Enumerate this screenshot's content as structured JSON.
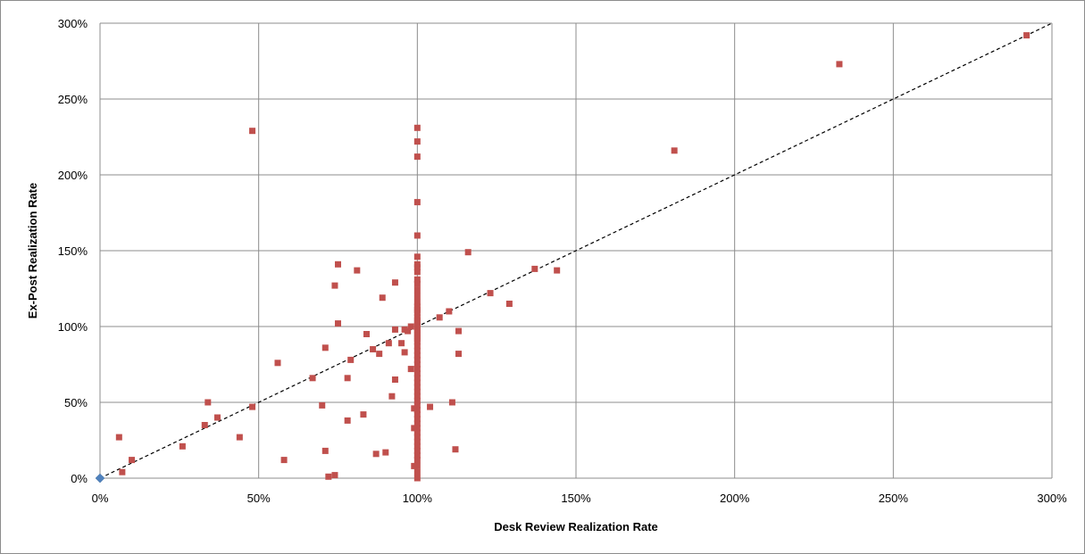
{
  "chart_data": {
    "type": "scatter",
    "title": "",
    "xlabel": "Desk Review Realization  Rate",
    "ylabel": "Ex-Post Realization  Rate",
    "xlim": [
      0,
      300
    ],
    "ylim": [
      0,
      300
    ],
    "x_ticks": [
      0,
      50,
      100,
      150,
      200,
      250,
      300
    ],
    "y_ticks": [
      0,
      50,
      100,
      150,
      200,
      250,
      300
    ],
    "x_tick_labels": [
      "0%",
      "50%",
      "100%",
      "150%",
      "200%",
      "250%",
      "300%"
    ],
    "y_tick_labels": [
      "0%",
      "50%",
      "100%",
      "150%",
      "200%",
      "250%",
      "300%"
    ],
    "grid": true,
    "legend": "none",
    "reference_line": {
      "style": "dashed",
      "color": "#000000",
      "from": [
        0,
        0
      ],
      "to": [
        300,
        300
      ]
    },
    "series": [
      {
        "marker": "square",
        "color": "#c0504d",
        "points": [
          [
            48,
            229
          ],
          [
            100,
            231
          ],
          [
            100,
            222
          ],
          [
            100,
            212
          ],
          [
            100,
            182
          ],
          [
            100,
            160
          ],
          [
            233,
            273
          ],
          [
            292,
            292
          ],
          [
            181,
            216
          ],
          [
            116,
            149
          ],
          [
            75,
            141
          ],
          [
            81,
            137
          ],
          [
            74,
            127
          ],
          [
            93,
            129
          ],
          [
            89,
            119
          ],
          [
            137,
            138
          ],
          [
            144,
            137
          ],
          [
            123,
            122
          ],
          [
            129,
            115
          ],
          [
            110,
            110
          ],
          [
            107,
            106
          ],
          [
            113,
            97
          ],
          [
            113,
            82
          ],
          [
            104,
            47
          ],
          [
            111,
            50
          ],
          [
            112,
            19
          ],
          [
            75,
            102
          ],
          [
            84,
            95
          ],
          [
            91,
            89
          ],
          [
            93,
            98
          ],
          [
            96,
            98
          ],
          [
            95,
            89
          ],
          [
            97,
            97
          ],
          [
            98,
            100
          ],
          [
            96,
            83
          ],
          [
            98,
            72
          ],
          [
            93,
            65
          ],
          [
            92,
            54
          ],
          [
            86,
            85
          ],
          [
            88,
            82
          ],
          [
            79,
            78
          ],
          [
            78,
            66
          ],
          [
            67,
            66
          ],
          [
            71,
            86
          ],
          [
            56,
            76
          ],
          [
            70,
            48
          ],
          [
            78,
            38
          ],
          [
            83,
            42
          ],
          [
            71,
            18
          ],
          [
            58,
            12
          ],
          [
            72,
            1
          ],
          [
            74,
            2
          ],
          [
            87,
            16
          ],
          [
            90,
            17
          ],
          [
            99,
            8
          ],
          [
            99,
            33
          ],
          [
            99,
            46
          ],
          [
            48,
            47
          ],
          [
            44,
            27
          ],
          [
            37,
            40
          ],
          [
            34,
            50
          ],
          [
            33,
            35
          ],
          [
            26,
            21
          ],
          [
            6,
            27
          ],
          [
            10,
            12
          ],
          [
            7,
            4
          ],
          [
            100,
            146
          ],
          [
            100,
            141
          ],
          [
            100,
            139
          ],
          [
            100,
            136
          ],
          [
            100,
            131
          ],
          [
            100,
            128
          ],
          [
            100,
            124
          ],
          [
            100,
            120
          ],
          [
            100,
            116
          ],
          [
            100,
            113
          ],
          [
            100,
            111
          ],
          [
            100,
            109
          ],
          [
            100,
            106
          ],
          [
            100,
            104
          ],
          [
            100,
            102
          ],
          [
            100,
            100
          ],
          [
            100,
            98
          ],
          [
            100,
            96
          ],
          [
            100,
            94
          ],
          [
            100,
            92
          ],
          [
            100,
            90
          ],
          [
            100,
            87
          ],
          [
            100,
            84
          ],
          [
            100,
            81
          ],
          [
            100,
            78
          ],
          [
            100,
            75
          ],
          [
            100,
            72
          ],
          [
            100,
            69
          ],
          [
            100,
            66
          ],
          [
            100,
            63
          ],
          [
            100,
            60
          ],
          [
            100,
            57
          ],
          [
            100,
            54
          ],
          [
            100,
            51
          ],
          [
            100,
            48
          ],
          [
            100,
            45
          ],
          [
            100,
            42
          ],
          [
            100,
            39
          ],
          [
            100,
            36
          ],
          [
            100,
            33
          ],
          [
            100,
            30
          ],
          [
            100,
            27
          ],
          [
            100,
            24
          ],
          [
            100,
            21
          ],
          [
            100,
            18
          ],
          [
            100,
            15
          ],
          [
            100,
            12
          ],
          [
            100,
            8
          ],
          [
            100,
            4
          ],
          [
            100,
            0
          ]
        ]
      },
      {
        "marker": "diamond",
        "color": "#4f81bd",
        "points": [
          [
            0,
            0
          ]
        ]
      }
    ]
  }
}
